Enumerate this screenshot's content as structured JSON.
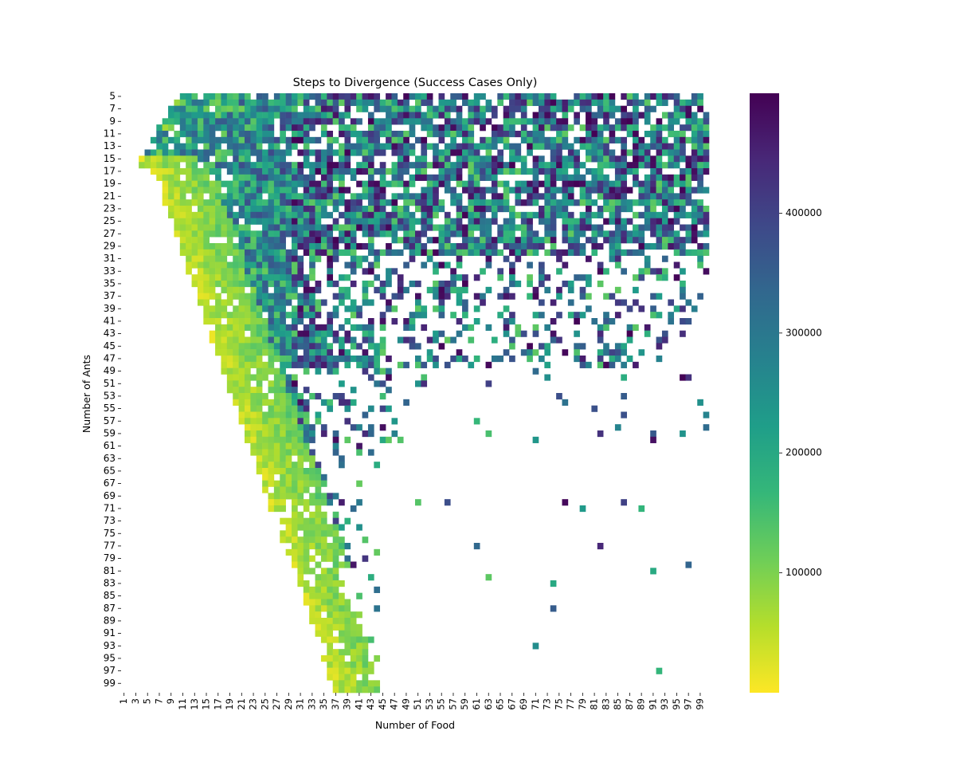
{
  "chart_data": {
    "type": "heatmap",
    "title": "Steps to Divergence (Success Cases Only)",
    "xlabel": "Number of Food",
    "ylabel": "Number of Ants",
    "x_range": [
      1,
      100
    ],
    "y_range": [
      5,
      100
    ],
    "x_tick_labels": [
      "1",
      "3",
      "5",
      "7",
      "9",
      "11",
      "13",
      "15",
      "17",
      "19",
      "21",
      "23",
      "25",
      "27",
      "29",
      "31",
      "33",
      "35",
      "37",
      "39",
      "41",
      "43",
      "45",
      "47",
      "49",
      "51",
      "53",
      "55",
      "57",
      "59",
      "61",
      "63",
      "65",
      "67",
      "69",
      "71",
      "73",
      "75",
      "77",
      "79",
      "81",
      "83",
      "85",
      "87",
      "89",
      "91",
      "93",
      "95",
      "97",
      "99"
    ],
    "y_tick_labels": [
      "5",
      "7",
      "9",
      "11",
      "13",
      "15",
      "17",
      "19",
      "21",
      "23",
      "25",
      "27",
      "29",
      "31",
      "33",
      "35",
      "37",
      "39",
      "41",
      "43",
      "45",
      "47",
      "49",
      "51",
      "53",
      "55",
      "57",
      "59",
      "61",
      "63",
      "65",
      "67",
      "69",
      "71",
      "73",
      "75",
      "77",
      "79",
      "81",
      "83",
      "85",
      "87",
      "89",
      "91",
      "93",
      "95",
      "97",
      "99"
    ],
    "colorbar": {
      "colormap": "viridis_r",
      "vmin": 0,
      "vmax": 500000,
      "ticks": [
        100000,
        200000,
        300000,
        400000
      ],
      "tick_labels": [
        "100000",
        "200000",
        "300000",
        "400000"
      ]
    },
    "missing_value_color": "#ffffff",
    "cells_note": "",
    "region_summary": [
      {
        "ants_from": 11,
        "ants_to": 60,
        "food_from": 9,
        "food_to": 30,
        "value_range": [
          0,
          150000
        ]
      },
      {
        "ants_from": 5,
        "ants_to": 50,
        "food_from": 30,
        "food_to": 100,
        "value_range": [
          100000,
          500000
        ]
      },
      {
        "ants_from": 50,
        "ants_to": 100,
        "food_from": 25,
        "food_to": 45,
        "value_range": [
          0,
          500000
        ]
      }
    ]
  },
  "colors": {
    "viridis_r": [
      "#fde725",
      "#b5de2b",
      "#6ece58",
      "#35b779",
      "#1f9e89",
      "#26828e",
      "#31688e",
      "#3e4989",
      "#482878",
      "#440154"
    ]
  }
}
